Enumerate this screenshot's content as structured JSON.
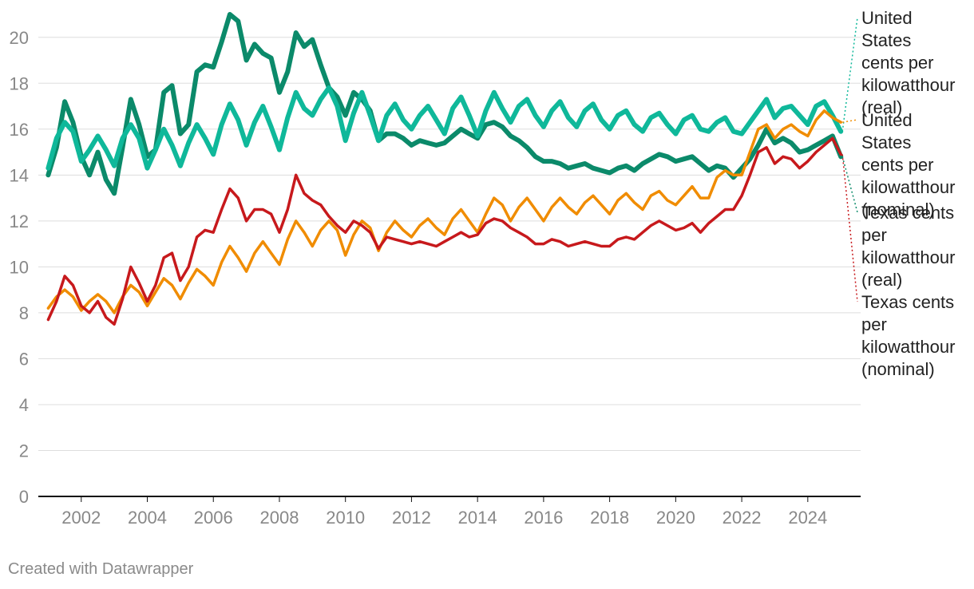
{
  "footer": {
    "credit": "Created with Datawrapper"
  },
  "colors": {
    "us_real": "#0fb89a",
    "us_nominal": "#f08c00",
    "tx_real": "#0b8a6a",
    "tx_nominal": "#c7191c",
    "grid": "#dddddd",
    "tick": "#888888",
    "baseline": "#111111"
  },
  "chart_data": {
    "type": "line",
    "title": "",
    "xlabel": "",
    "ylabel": "",
    "xlim": [
      2000.7,
      2025.6
    ],
    "ylim": [
      0,
      21
    ],
    "grid": true,
    "legend_placement": "right, direct labels at line ends",
    "y_ticks": [
      "0",
      "2",
      "4",
      "6",
      "8",
      "10",
      "12",
      "14",
      "16",
      "18",
      "20"
    ],
    "x_ticks": [
      "2002",
      "2004",
      "2006",
      "2008",
      "2010",
      "2012",
      "2014",
      "2016",
      "2018",
      "2020",
      "2022",
      "2024"
    ],
    "series": [
      {
        "name": "United States cents per kilowatthour (real)",
        "x": [
          2001.0,
          2001.25,
          2001.5,
          2001.75,
          2002.0,
          2002.25,
          2002.5,
          2002.75,
          2003.0,
          2003.25,
          2003.5,
          2003.75,
          2004.0,
          2004.25,
          2004.5,
          2004.75,
          2005.0,
          2005.25,
          2005.5,
          2005.75,
          2006.0,
          2006.25,
          2006.5,
          2006.75,
          2007.0,
          2007.25,
          2007.5,
          2007.75,
          2008.0,
          2008.25,
          2008.5,
          2008.75,
          2009.0,
          2009.25,
          2009.5,
          2009.75,
          2010.0,
          2010.25,
          2010.5,
          2010.75,
          2011.0,
          2011.25,
          2011.5,
          2011.75,
          2012.0,
          2012.25,
          2012.5,
          2012.75,
          2013.0,
          2013.25,
          2013.5,
          2013.75,
          2014.0,
          2014.25,
          2014.5,
          2014.75,
          2015.0,
          2015.25,
          2015.5,
          2015.75,
          2016.0,
          2016.25,
          2016.5,
          2016.75,
          2017.0,
          2017.25,
          2017.5,
          2017.75,
          2018.0,
          2018.25,
          2018.5,
          2018.75,
          2019.0,
          2019.25,
          2019.5,
          2019.75,
          2020.0,
          2020.25,
          2020.5,
          2020.75,
          2021.0,
          2021.25,
          2021.5,
          2021.75,
          2022.0,
          2022.25,
          2022.5,
          2022.75,
          2023.0,
          2023.25,
          2023.5,
          2023.75,
          2024.0,
          2024.25,
          2024.5,
          2024.75,
          2025.0
        ],
        "values": [
          14.3,
          15.6,
          16.3,
          15.9,
          14.6,
          15.1,
          15.7,
          15.1,
          14.4,
          15.6,
          16.2,
          15.6,
          14.3,
          15.1,
          16.0,
          15.3,
          14.4,
          15.4,
          16.2,
          15.6,
          14.9,
          16.2,
          17.1,
          16.4,
          15.3,
          16.3,
          17.0,
          16.1,
          15.1,
          16.5,
          17.6,
          16.9,
          16.6,
          17.3,
          17.8,
          17.0,
          15.5,
          16.7,
          17.6,
          16.6,
          15.5,
          16.6,
          17.1,
          16.4,
          16.0,
          16.6,
          17.0,
          16.4,
          15.8,
          16.9,
          17.4,
          16.6,
          15.7,
          16.8,
          17.6,
          16.9,
          16.3,
          17.0,
          17.3,
          16.6,
          16.1,
          16.8,
          17.2,
          16.5,
          16.1,
          16.8,
          17.1,
          16.4,
          16.0,
          16.6,
          16.8,
          16.2,
          15.9,
          16.5,
          16.7,
          16.2,
          15.8,
          16.4,
          16.6,
          16.0,
          15.9,
          16.3,
          16.5,
          15.9,
          15.8,
          16.3,
          16.8,
          17.3,
          16.5,
          16.9,
          17.0,
          16.6,
          16.2,
          17.0,
          17.2,
          16.6,
          15.9
        ]
      },
      {
        "name": "United States cents per kilowatthour (nominal)",
        "x": [
          2001.0,
          2001.25,
          2001.5,
          2001.75,
          2002.0,
          2002.25,
          2002.5,
          2002.75,
          2003.0,
          2003.25,
          2003.5,
          2003.75,
          2004.0,
          2004.25,
          2004.5,
          2004.75,
          2005.0,
          2005.25,
          2005.5,
          2005.75,
          2006.0,
          2006.25,
          2006.5,
          2006.75,
          2007.0,
          2007.25,
          2007.5,
          2007.75,
          2008.0,
          2008.25,
          2008.5,
          2008.75,
          2009.0,
          2009.25,
          2009.5,
          2009.75,
          2010.0,
          2010.25,
          2010.5,
          2010.75,
          2011.0,
          2011.25,
          2011.5,
          2011.75,
          2012.0,
          2012.25,
          2012.5,
          2012.75,
          2013.0,
          2013.25,
          2013.5,
          2013.75,
          2014.0,
          2014.25,
          2014.5,
          2014.75,
          2015.0,
          2015.25,
          2015.5,
          2015.75,
          2016.0,
          2016.25,
          2016.5,
          2016.75,
          2017.0,
          2017.25,
          2017.5,
          2017.75,
          2018.0,
          2018.25,
          2018.5,
          2018.75,
          2019.0,
          2019.25,
          2019.5,
          2019.75,
          2020.0,
          2020.25,
          2020.5,
          2020.75,
          2021.0,
          2021.25,
          2021.5,
          2021.75,
          2022.0,
          2022.25,
          2022.5,
          2022.75,
          2023.0,
          2023.25,
          2023.5,
          2023.75,
          2024.0,
          2024.25,
          2024.5,
          2024.75,
          2025.0
        ],
        "values": [
          8.2,
          8.7,
          9.0,
          8.7,
          8.1,
          8.5,
          8.8,
          8.5,
          8.0,
          8.7,
          9.2,
          8.9,
          8.3,
          8.9,
          9.5,
          9.2,
          8.6,
          9.3,
          9.9,
          9.6,
          9.2,
          10.2,
          10.9,
          10.4,
          9.8,
          10.6,
          11.1,
          10.6,
          10.1,
          11.2,
          12.0,
          11.5,
          10.9,
          11.6,
          12.0,
          11.6,
          10.5,
          11.4,
          12.0,
          11.7,
          10.7,
          11.5,
          12.0,
          11.6,
          11.3,
          11.8,
          12.1,
          11.7,
          11.4,
          12.1,
          12.5,
          12.0,
          11.5,
          12.3,
          13.0,
          12.7,
          12.0,
          12.6,
          13.0,
          12.5,
          12.0,
          12.6,
          13.0,
          12.6,
          12.3,
          12.8,
          13.1,
          12.7,
          12.3,
          12.9,
          13.2,
          12.8,
          12.5,
          13.1,
          13.3,
          12.9,
          12.7,
          13.1,
          13.5,
          13.0,
          13.0,
          13.9,
          14.2,
          14.0,
          14.0,
          15.0,
          16.0,
          16.2,
          15.6,
          16.0,
          16.2,
          15.9,
          15.7,
          16.4,
          16.8,
          16.5,
          16.3
        ]
      },
      {
        "name": "Texas cents per kilowatthour (real)",
        "x": [
          2001.0,
          2001.25,
          2001.5,
          2001.75,
          2002.0,
          2002.25,
          2002.5,
          2002.75,
          2003.0,
          2003.25,
          2003.5,
          2003.75,
          2004.0,
          2004.25,
          2004.5,
          2004.75,
          2005.0,
          2005.25,
          2005.5,
          2005.75,
          2006.0,
          2006.25,
          2006.5,
          2006.75,
          2007.0,
          2007.25,
          2007.5,
          2007.75,
          2008.0,
          2008.25,
          2008.5,
          2008.75,
          2009.0,
          2009.25,
          2009.5,
          2009.75,
          2010.0,
          2010.25,
          2010.5,
          2010.75,
          2011.0,
          2011.25,
          2011.5,
          2011.75,
          2012.0,
          2012.25,
          2012.5,
          2012.75,
          2013.0,
          2013.25,
          2013.5,
          2013.75,
          2014.0,
          2014.25,
          2014.5,
          2014.75,
          2015.0,
          2015.25,
          2015.5,
          2015.75,
          2016.0,
          2016.25,
          2016.5,
          2016.75,
          2017.0,
          2017.25,
          2017.5,
          2017.75,
          2018.0,
          2018.25,
          2018.5,
          2018.75,
          2019.0,
          2019.25,
          2019.5,
          2019.75,
          2020.0,
          2020.25,
          2020.5,
          2020.75,
          2021.0,
          2021.25,
          2021.5,
          2021.75,
          2022.0,
          2022.25,
          2022.5,
          2022.75,
          2023.0,
          2023.25,
          2023.5,
          2023.75,
          2024.0,
          2024.25,
          2024.5,
          2024.75,
          2025.0
        ],
        "values": [
          14.0,
          15.2,
          17.2,
          16.3,
          14.8,
          14.0,
          15.0,
          13.8,
          13.2,
          15.2,
          17.3,
          16.2,
          14.8,
          15.1,
          17.6,
          17.9,
          15.8,
          16.2,
          18.5,
          18.8,
          18.7,
          19.8,
          21.0,
          20.7,
          19.0,
          19.7,
          19.3,
          19.1,
          17.6,
          18.5,
          20.2,
          19.6,
          19.9,
          18.8,
          17.8,
          17.4,
          16.6,
          17.6,
          17.3,
          16.8,
          15.5,
          15.8,
          15.8,
          15.6,
          15.3,
          15.5,
          15.4,
          15.3,
          15.4,
          15.7,
          16.0,
          15.8,
          15.6,
          16.2,
          16.3,
          16.1,
          15.7,
          15.5,
          15.2,
          14.8,
          14.6,
          14.6,
          14.5,
          14.3,
          14.4,
          14.5,
          14.3,
          14.2,
          14.1,
          14.3,
          14.4,
          14.2,
          14.5,
          14.7,
          14.9,
          14.8,
          14.6,
          14.7,
          14.8,
          14.5,
          14.2,
          14.4,
          14.3,
          13.9,
          14.3,
          14.7,
          15.3,
          16.0,
          15.4,
          15.6,
          15.4,
          15.0,
          15.1,
          15.3,
          15.5,
          15.7,
          14.8
        ]
      },
      {
        "name": "Texas cents per kilowatthour (nominal)",
        "x": [
          2001.0,
          2001.25,
          2001.5,
          2001.75,
          2002.0,
          2002.25,
          2002.5,
          2002.75,
          2003.0,
          2003.25,
          2003.5,
          2003.75,
          2004.0,
          2004.25,
          2004.5,
          2004.75,
          2005.0,
          2005.25,
          2005.5,
          2005.75,
          2006.0,
          2006.25,
          2006.5,
          2006.75,
          2007.0,
          2007.25,
          2007.5,
          2007.75,
          2008.0,
          2008.25,
          2008.5,
          2008.75,
          2009.0,
          2009.25,
          2009.5,
          2009.75,
          2010.0,
          2010.25,
          2010.5,
          2010.75,
          2011.0,
          2011.25,
          2011.5,
          2011.75,
          2012.0,
          2012.25,
          2012.5,
          2012.75,
          2013.0,
          2013.25,
          2013.5,
          2013.75,
          2014.0,
          2014.25,
          2014.5,
          2014.75,
          2015.0,
          2015.25,
          2015.5,
          2015.75,
          2016.0,
          2016.25,
          2016.5,
          2016.75,
          2017.0,
          2017.25,
          2017.5,
          2017.75,
          2018.0,
          2018.25,
          2018.5,
          2018.75,
          2019.0,
          2019.25,
          2019.5,
          2019.75,
          2020.0,
          2020.25,
          2020.5,
          2020.75,
          2021.0,
          2021.25,
          2021.5,
          2021.75,
          2022.0,
          2022.25,
          2022.5,
          2022.75,
          2023.0,
          2023.25,
          2023.5,
          2023.75,
          2024.0,
          2024.25,
          2024.5,
          2024.75,
          2025.0
        ],
        "values": [
          7.7,
          8.5,
          9.6,
          9.2,
          8.3,
          8.0,
          8.5,
          7.8,
          7.5,
          8.6,
          10.0,
          9.3,
          8.5,
          9.2,
          10.4,
          10.6,
          9.4,
          10.0,
          11.3,
          11.6,
          11.5,
          12.5,
          13.4,
          13.0,
          12.0,
          12.5,
          12.5,
          12.3,
          11.5,
          12.5,
          14.0,
          13.2,
          12.9,
          12.7,
          12.2,
          11.8,
          11.5,
          12.0,
          11.8,
          11.5,
          10.8,
          11.3,
          11.2,
          11.1,
          11.0,
          11.1,
          11.0,
          10.9,
          11.1,
          11.3,
          11.5,
          11.3,
          11.4,
          11.9,
          12.1,
          12.0,
          11.7,
          11.5,
          11.3,
          11.0,
          11.0,
          11.2,
          11.1,
          10.9,
          11.0,
          11.1,
          11.0,
          10.9,
          10.9,
          11.2,
          11.3,
          11.2,
          11.5,
          11.8,
          12.0,
          11.8,
          11.6,
          11.7,
          11.9,
          11.5,
          11.9,
          12.2,
          12.5,
          12.5,
          13.1,
          14.0,
          15.0,
          15.2,
          14.5,
          14.8,
          14.7,
          14.3,
          14.6,
          15.0,
          15.3,
          15.6,
          14.9
        ]
      }
    ],
    "labels": {
      "us_real": [
        "United",
        "States",
        "cents per",
        "kilowatthour",
        "(real)"
      ],
      "us_nominal": [
        "United",
        "States",
        "cents per",
        "kilowatthour",
        "(nominal)"
      ],
      "tx_real": [
        "Texas cents",
        "per",
        "kilowatthour",
        "(real)"
      ],
      "tx_nominal": [
        "Texas cents",
        "per",
        "kilowatthour",
        "(nominal)"
      ]
    }
  }
}
